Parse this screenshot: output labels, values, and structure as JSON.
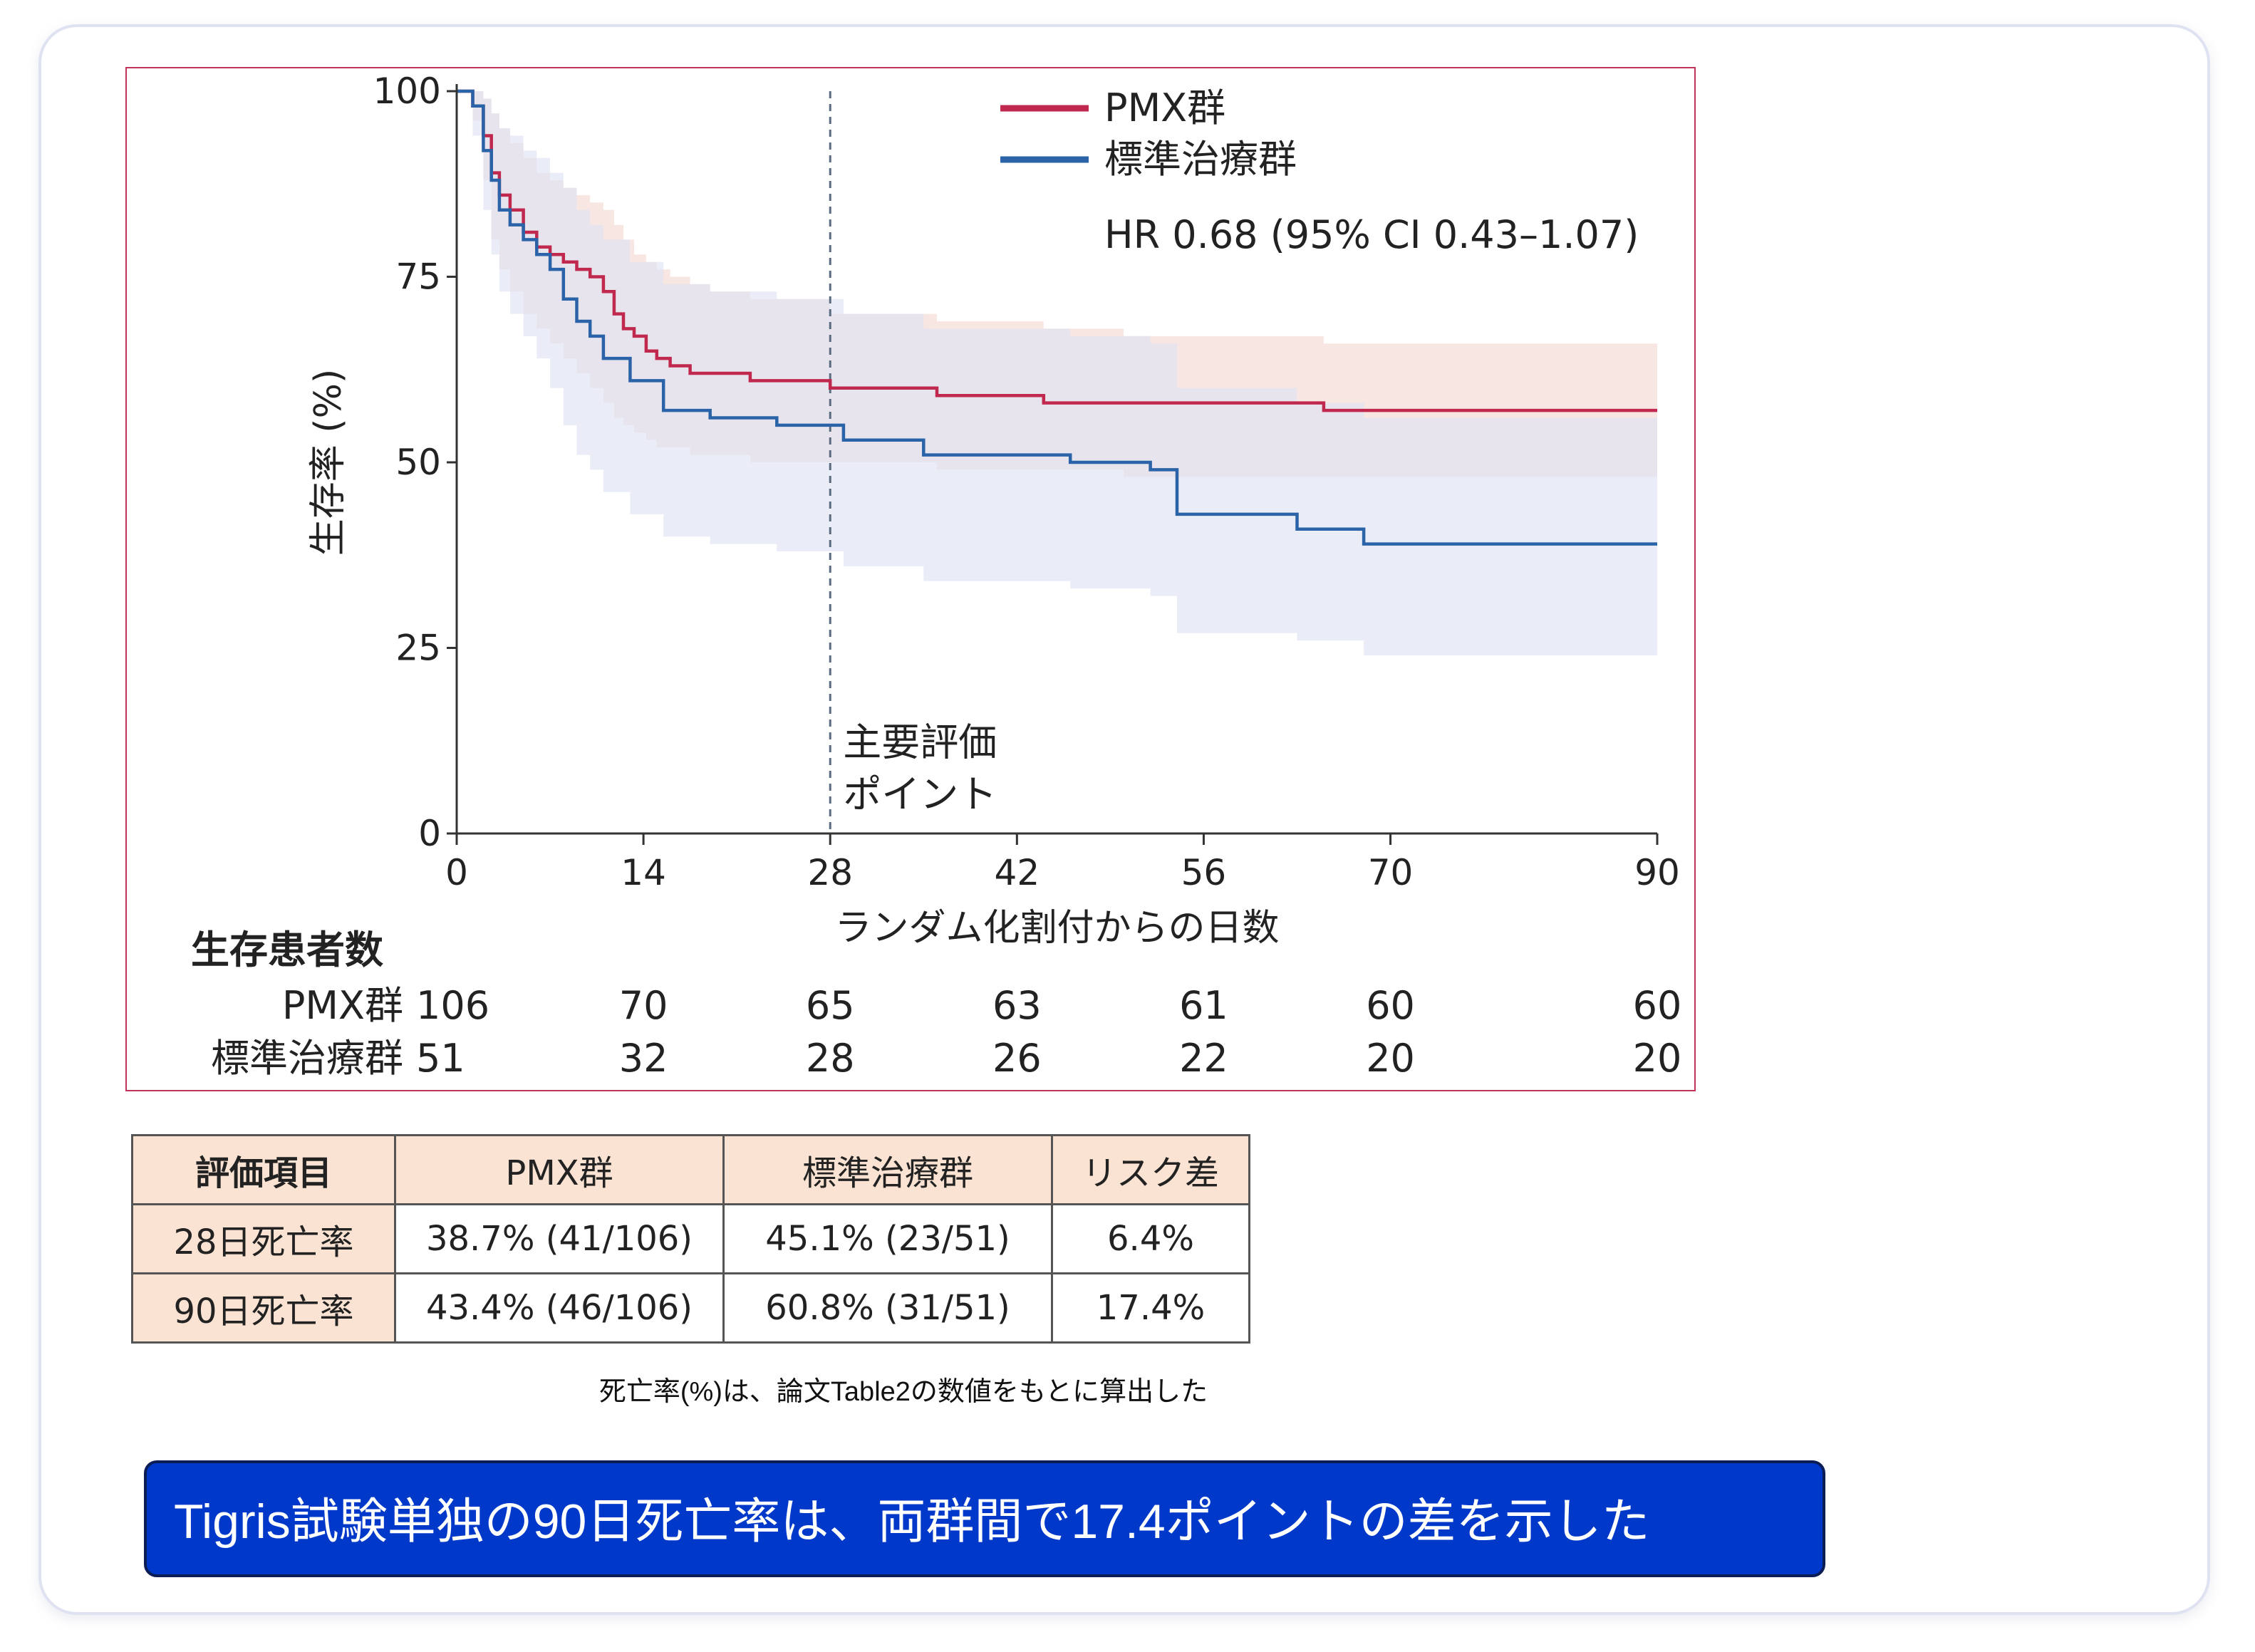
{
  "chart_data": {
    "type": "line",
    "title": "",
    "xlabel": "ランダム化割付からの日数",
    "ylabel": "生存率 (%)",
    "xlim": [
      0,
      90
    ],
    "ylim": [
      0,
      100
    ],
    "x_ticks": [
      0,
      14,
      28,
      42,
      56,
      70,
      90
    ],
    "y_ticks": [
      0,
      25,
      50,
      75,
      100
    ],
    "legend_position": "top-right",
    "annotation_hr": "HR 0.68 (95% CI 0.43–1.07)",
    "reference_line": {
      "x": 28,
      "label_line1": "主要評価",
      "label_line2": "ポイント"
    },
    "series": [
      {
        "name": "PMX群",
        "color": "#c0284e",
        "band_color": "#f5ddd8",
        "x": [
          0,
          1.2,
          2,
          2.6,
          3.2,
          4,
          5,
          6,
          7,
          8,
          9,
          10,
          11,
          11.8,
          12.5,
          13.3,
          14.2,
          15,
          16,
          17.5,
          19,
          22,
          28,
          36,
          44,
          50,
          60,
          65,
          90
        ],
        "y": [
          100,
          98,
          94,
          89,
          86,
          84,
          81,
          79,
          78,
          77,
          76,
          75,
          73,
          70,
          68,
          67,
          65,
          64,
          63,
          62,
          62,
          61,
          60,
          59,
          58,
          58,
          58,
          57,
          57
        ],
        "lower": [
          100,
          96,
          88,
          80,
          76,
          73,
          70,
          68,
          66,
          64,
          62,
          60,
          58,
          56,
          55,
          54,
          53,
          52,
          52,
          51,
          51,
          50,
          50,
          49,
          49,
          48,
          48,
          48,
          48
        ],
        "upper": [
          100,
          100,
          99,
          97,
          95,
          93,
          91,
          89,
          88,
          87,
          86,
          85,
          84,
          82,
          80,
          78,
          77,
          76,
          75,
          74,
          73,
          72,
          70,
          69,
          68,
          67,
          67,
          66,
          66
        ]
      },
      {
        "name": "標準治療群",
        "color": "#2a63a8",
        "band_color": "#dfe3f3",
        "x": [
          0,
          1.2,
          2,
          2.6,
          3.2,
          4,
          5,
          6,
          7,
          8,
          9,
          10,
          11,
          13,
          15.5,
          19,
          24,
          29,
          35,
          46,
          52,
          54,
          63,
          68,
          90
        ],
        "y": [
          100,
          98,
          92,
          88,
          84,
          82,
          80,
          78,
          76,
          72,
          69,
          67,
          64,
          61,
          57,
          56,
          55,
          53,
          51,
          50,
          49,
          43,
          41,
          39,
          39
        ],
        "lower": [
          100,
          94,
          84,
          78,
          73,
          70,
          67,
          64,
          60,
          55,
          51,
          49,
          46,
          43,
          40,
          39,
          38,
          36,
          34,
          33,
          32,
          27,
          26,
          24,
          24
        ],
        "upper": [
          100,
          100,
          99,
          97,
          95,
          94,
          92,
          91,
          89,
          87,
          84,
          82,
          80,
          77,
          74,
          73,
          72,
          70,
          68,
          67,
          66,
          60,
          58,
          56,
          56
        ]
      }
    ],
    "risk_table": {
      "header": "生存患者数",
      "x": [
        0,
        14,
        28,
        42,
        56,
        70,
        90
      ],
      "rows": [
        {
          "label": "PMX群",
          "values": [
            "106",
            "70",
            "65",
            "63",
            "61",
            "60",
            "60"
          ]
        },
        {
          "label": "標準治療群",
          "values": [
            "51",
            "32",
            "28",
            "26",
            "22",
            "20",
            "20"
          ]
        }
      ]
    }
  },
  "table": {
    "headers": [
      "評価項目",
      "PMX群",
      "標準治療群",
      "リスク差"
    ],
    "rows": [
      [
        "28日死亡率",
        "38.7% (41/106)",
        "45.1% (23/51)",
        "6.4%"
      ],
      [
        "90日死亡率",
        "43.4% (46/106)",
        "60.8% (31/51)",
        "17.4%"
      ]
    ]
  },
  "note": "死亡率(%)は、論文Table2の数値をもとに算出した",
  "callout": "Tigris試験単独の90日死亡率は、両群間で17.4ポイントの差を示した"
}
